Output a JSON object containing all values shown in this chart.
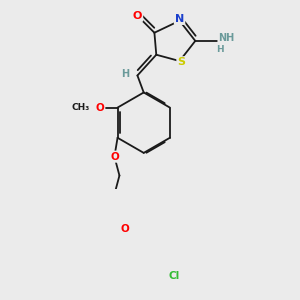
{
  "background_color": "#ebebeb",
  "bond_color": "#1a1a1a",
  "atom_colors": {
    "O": "#ff0000",
    "N": "#1a3fcc",
    "S": "#cccc00",
    "Cl": "#33bb33",
    "H": "#6a9a9a"
  },
  "lw": 1.3,
  "fs": 7.0
}
